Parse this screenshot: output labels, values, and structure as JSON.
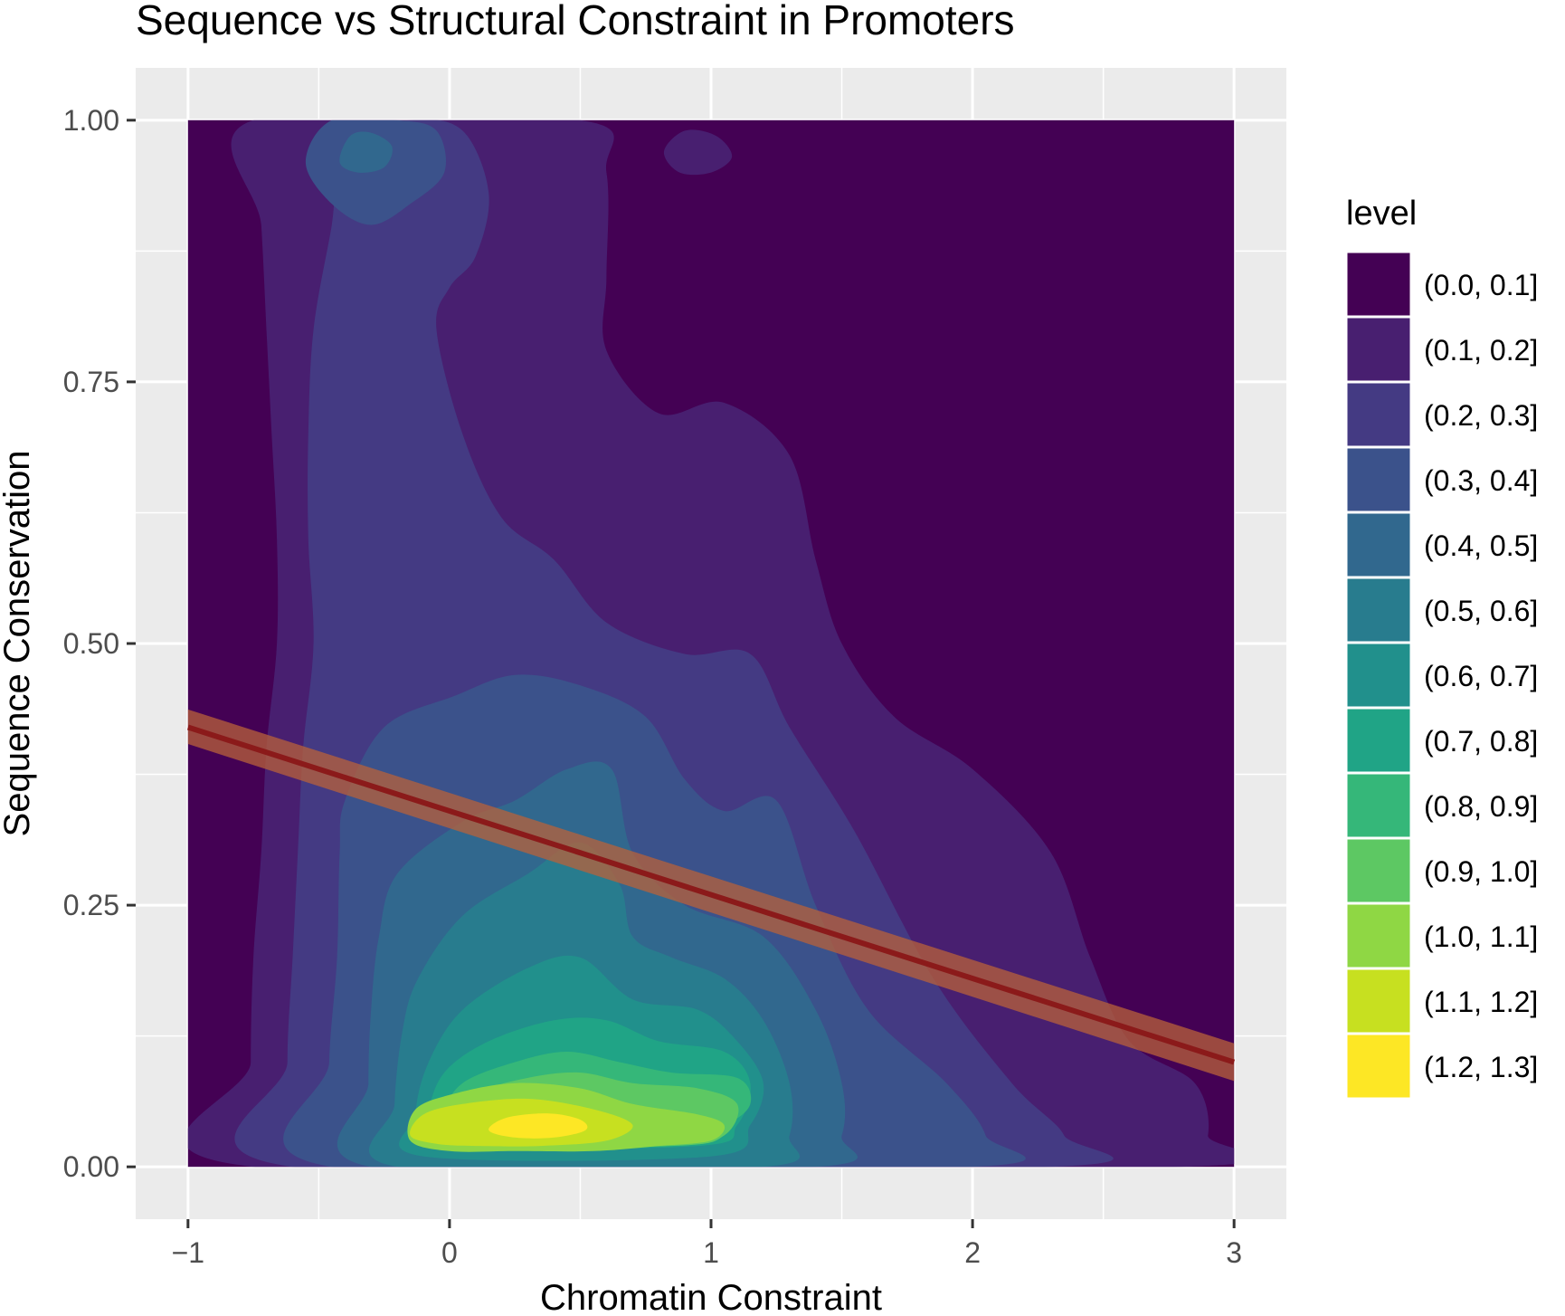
{
  "chart_data": {
    "type": "contour",
    "title": "Sequence vs Structural Constraint in Promoters",
    "xlabel": "Chromatin Constraint",
    "ylabel": "Sequence Conservation",
    "xlim": [
      -1.2,
      3.2
    ],
    "ylim": [
      -0.05,
      1.05
    ],
    "x_ticks": [
      -1,
      0,
      1,
      2,
      3
    ],
    "x_tick_labels": [
      "−1",
      "0",
      "1",
      "2",
      "3"
    ],
    "y_ticks": [
      0,
      0.25,
      0.5,
      0.75,
      1
    ],
    "y_tick_labels": [
      "0.00",
      "0.25",
      "0.50",
      "0.75",
      "1.00"
    ],
    "grid": true,
    "panel_background": "#ebebeb",
    "density_extent": {
      "x": [
        -1,
        3
      ],
      "y": [
        0,
        1
      ]
    },
    "legend": {
      "title": "level",
      "position": "right",
      "entries": [
        "(0.0, 0.1]",
        "(0.1, 0.2]",
        "(0.2, 0.3]",
        "(0.3, 0.4]",
        "(0.4, 0.5]",
        "(0.5, 0.6]",
        "(0.6, 0.7]",
        "(0.7, 0.8]",
        "(0.8, 0.9]",
        "(0.9, 1.0]",
        "(1.0, 1.1]",
        "(1.1, 1.2]",
        "(1.2, 1.3]"
      ],
      "colors": [
        "#440154",
        "#481F70",
        "#443A83",
        "#3B528B",
        "#31688E",
        "#287C8E",
        "#21908C",
        "#20A486",
        "#35B779",
        "#5DC863",
        "#8FD744",
        "#C7E020",
        "#FDE725"
      ]
    },
    "levels": [
      {
        "level": "(0.1, 0.2]",
        "points": [
          [
            -0.75,
            0
          ],
          [
            -0.76,
            0.1
          ],
          [
            -0.75,
            0.2
          ],
          [
            -0.72,
            0.3
          ],
          [
            -0.7,
            0.4
          ],
          [
            -0.66,
            0.5
          ],
          [
            -0.66,
            0.6
          ],
          [
            -0.68,
            0.7
          ],
          [
            -0.7,
            0.8
          ],
          [
            -0.72,
            0.9
          ],
          [
            -0.75,
            1
          ],
          [
            0.5,
            1
          ],
          [
            0.6,
            0.95
          ],
          [
            0.6,
            0.85
          ],
          [
            0.6,
            0.78
          ],
          [
            0.8,
            0.72
          ],
          [
            1.05,
            0.73
          ],
          [
            1.3,
            0.68
          ],
          [
            1.4,
            0.58
          ],
          [
            1.5,
            0.5
          ],
          [
            1.7,
            0.43
          ],
          [
            2,
            0.38
          ],
          [
            2.3,
            0.3
          ],
          [
            2.45,
            0.2
          ],
          [
            2.6,
            0.12
          ],
          [
            2.85,
            0.08
          ],
          [
            2.9,
            0.03
          ],
          [
            2.8,
            0
          ]
        ]
      },
      {
        "level": "(0.2, 0.3]",
        "points": [
          [
            -0.6,
            0
          ],
          [
            -0.62,
            0.1
          ],
          [
            -0.6,
            0.2
          ],
          [
            -0.58,
            0.3
          ],
          [
            -0.56,
            0.4
          ],
          [
            -0.52,
            0.5
          ],
          [
            -0.54,
            0.6
          ],
          [
            -0.54,
            0.7
          ],
          [
            -0.52,
            0.8
          ],
          [
            -0.45,
            0.9
          ],
          [
            -0.4,
            0.98
          ],
          [
            -0.15,
            1
          ],
          [
            0.05,
            0.99
          ],
          [
            0.15,
            0.93
          ],
          [
            0.1,
            0.87
          ],
          [
            0,
            0.84
          ],
          [
            -0.05,
            0.8
          ],
          [
            0.05,
            0.7
          ],
          [
            0.2,
            0.62
          ],
          [
            0.4,
            0.58
          ],
          [
            0.6,
            0.52
          ],
          [
            0.9,
            0.49
          ],
          [
            1.15,
            0.49
          ],
          [
            1.3,
            0.42
          ],
          [
            1.55,
            0.32
          ],
          [
            1.85,
            0.18
          ],
          [
            2.15,
            0.08
          ],
          [
            2.35,
            0.03
          ],
          [
            2.3,
            0
          ]
        ]
      },
      {
        "level": "(0.3, 0.4]",
        "points": [
          [
            -0.45,
            0
          ],
          [
            -0.46,
            0.1
          ],
          [
            -0.43,
            0.2
          ],
          [
            -0.42,
            0.3
          ],
          [
            -0.4,
            0.35
          ],
          [
            -0.25,
            0.42
          ],
          [
            0.02,
            0.45
          ],
          [
            0.25,
            0.47
          ],
          [
            0.5,
            0.46
          ],
          [
            0.75,
            0.43
          ],
          [
            0.9,
            0.37
          ],
          [
            1.05,
            0.34
          ],
          [
            1.25,
            0.35
          ],
          [
            1.4,
            0.25
          ],
          [
            1.6,
            0.15
          ],
          [
            1.9,
            0.08
          ],
          [
            2.05,
            0.03
          ],
          [
            2,
            0
          ]
        ]
      },
      {
        "level": "(0.4, 0.5]",
        "points": [
          [
            -0.3,
            0
          ],
          [
            -0.31,
            0.08
          ],
          [
            -0.3,
            0.15
          ],
          [
            -0.27,
            0.22
          ],
          [
            -0.2,
            0.28
          ],
          [
            0.05,
            0.33
          ],
          [
            0.25,
            0.35
          ],
          [
            0.45,
            0.38
          ],
          [
            0.62,
            0.38
          ],
          [
            0.7,
            0.3
          ],
          [
            0.9,
            0.25
          ],
          [
            1.2,
            0.22
          ],
          [
            1.4,
            0.15
          ],
          [
            1.5,
            0.08
          ],
          [
            1.5,
            0.03
          ],
          [
            1.4,
            0
          ]
        ]
      },
      {
        "level": "(0.5, 0.6]",
        "points": [
          [
            -0.2,
            0
          ],
          [
            -0.21,
            0.06
          ],
          [
            -0.18,
            0.13
          ],
          [
            -0.12,
            0.18
          ],
          [
            0.05,
            0.24
          ],
          [
            0.3,
            0.28
          ],
          [
            0.5,
            0.31
          ],
          [
            0.65,
            0.27
          ],
          [
            0.7,
            0.22
          ],
          [
            0.85,
            0.2
          ],
          [
            1.05,
            0.18
          ],
          [
            1.2,
            0.14
          ],
          [
            1.3,
            0.08
          ],
          [
            1.3,
            0.03
          ],
          [
            1.2,
            0
          ]
        ]
      },
      {
        "level": "(0.6, 0.7]",
        "points": [
          [
            -0.1,
            0.01
          ],
          [
            -0.13,
            0.05
          ],
          [
            -0.08,
            0.1
          ],
          [
            0.05,
            0.15
          ],
          [
            0.3,
            0.19
          ],
          [
            0.5,
            0.2
          ],
          [
            0.7,
            0.16
          ],
          [
            0.95,
            0.15
          ],
          [
            1.1,
            0.12
          ],
          [
            1.2,
            0.08
          ],
          [
            1.15,
            0.04
          ],
          [
            1,
            0.01
          ]
        ]
      },
      {
        "level": "(0.7, 0.8]",
        "points": [
          [
            -0.05,
            0.02
          ],
          [
            -0.08,
            0.05
          ],
          [
            -0.02,
            0.09
          ],
          [
            0.15,
            0.12
          ],
          [
            0.4,
            0.14
          ],
          [
            0.6,
            0.14
          ],
          [
            0.8,
            0.12
          ],
          [
            1.05,
            0.11
          ],
          [
            1.15,
            0.08
          ],
          [
            1.1,
            0.04
          ],
          [
            0.95,
            0.02
          ]
        ]
      },
      {
        "level": "(0.8, 0.9]",
        "points": [
          [
            0.02,
            0.02
          ],
          [
            -0.02,
            0.05
          ],
          [
            0.05,
            0.08
          ],
          [
            0.25,
            0.1
          ],
          [
            0.45,
            0.11
          ],
          [
            0.65,
            0.1
          ],
          [
            0.85,
            0.09
          ],
          [
            1.1,
            0.085
          ],
          [
            1.15,
            0.06
          ],
          [
            1.05,
            0.04
          ],
          [
            0.85,
            0.03
          ]
        ]
      },
      {
        "level": "(0.9, 1.0]",
        "points": [
          [
            0.05,
            0.02
          ],
          [
            0.02,
            0.045
          ],
          [
            0.1,
            0.07
          ],
          [
            0.3,
            0.085
          ],
          [
            0.5,
            0.09
          ],
          [
            0.7,
            0.08
          ],
          [
            0.95,
            0.075
          ],
          [
            1.1,
            0.06
          ],
          [
            1.05,
            0.03
          ],
          [
            0.85,
            0.02
          ]
        ]
      },
      {
        "level": "(1.0, 1.1]",
        "points": [
          [
            -0.15,
            0.025
          ],
          [
            -0.13,
            0.055
          ],
          [
            0.02,
            0.07
          ],
          [
            0.25,
            0.08
          ],
          [
            0.5,
            0.075
          ],
          [
            0.7,
            0.06
          ],
          [
            0.95,
            0.05
          ],
          [
            1.05,
            0.04
          ],
          [
            1,
            0.025
          ],
          [
            0.8,
            0.02
          ],
          [
            0.55,
            0.015
          ],
          [
            0.25,
            0.015
          ],
          [
            0,
            0.015
          ]
        ]
      },
      {
        "level": "(1.1, 1.2]",
        "points": [
          [
            -0.15,
            0.03
          ],
          [
            -0.1,
            0.05
          ],
          [
            0.05,
            0.06
          ],
          [
            0.3,
            0.065
          ],
          [
            0.55,
            0.055
          ],
          [
            0.7,
            0.04
          ],
          [
            0.6,
            0.025
          ],
          [
            0.35,
            0.02
          ],
          [
            0.1,
            0.02
          ],
          [
            -0.05,
            0.022
          ]
        ]
      },
      {
        "level": "(1.2, 1.3]",
        "points": [
          [
            0.15,
            0.035
          ],
          [
            0.22,
            0.047
          ],
          [
            0.38,
            0.051
          ],
          [
            0.5,
            0.045
          ],
          [
            0.52,
            0.035
          ],
          [
            0.4,
            0.028
          ],
          [
            0.25,
            0.028
          ]
        ]
      },
      {
        "level": "(0.3, 0.4]",
        "points": [
          [
            -0.55,
            0.96
          ],
          [
            -0.45,
            1
          ],
          [
            -0.2,
            1
          ],
          [
            -0.05,
            0.99
          ],
          [
            -0.02,
            0.95
          ],
          [
            -0.15,
            0.92
          ],
          [
            -0.3,
            0.9
          ],
          [
            -0.45,
            0.92
          ]
        ]
      },
      {
        "level": "(0.4, 0.5]",
        "points": [
          [
            -0.42,
            0.96
          ],
          [
            -0.38,
            0.985
          ],
          [
            -0.3,
            0.988
          ],
          [
            -0.22,
            0.975
          ],
          [
            -0.25,
            0.955
          ],
          [
            -0.35,
            0.95
          ]
        ]
      },
      {
        "level": "(0.1, 0.2]",
        "points": [
          [
            0.82,
            0.97
          ],
          [
            0.9,
            0.99
          ],
          [
            1.02,
            0.985
          ],
          [
            1.08,
            0.965
          ],
          [
            1,
            0.95
          ],
          [
            0.88,
            0.95
          ]
        ]
      }
    ],
    "regression": {
      "line": {
        "x": [
          -1,
          3
        ],
        "y": [
          0.42,
          0.1
        ]
      },
      "ribbon_upper": {
        "x": [
          -1,
          3
        ],
        "y": [
          0.437,
          0.118
        ]
      },
      "ribbon_lower": {
        "x": [
          -1,
          3
        ],
        "y": [
          0.404,
          0.082
        ]
      },
      "line_color": "#8B1A1A",
      "ribbon_color": "#B8623A"
    }
  }
}
